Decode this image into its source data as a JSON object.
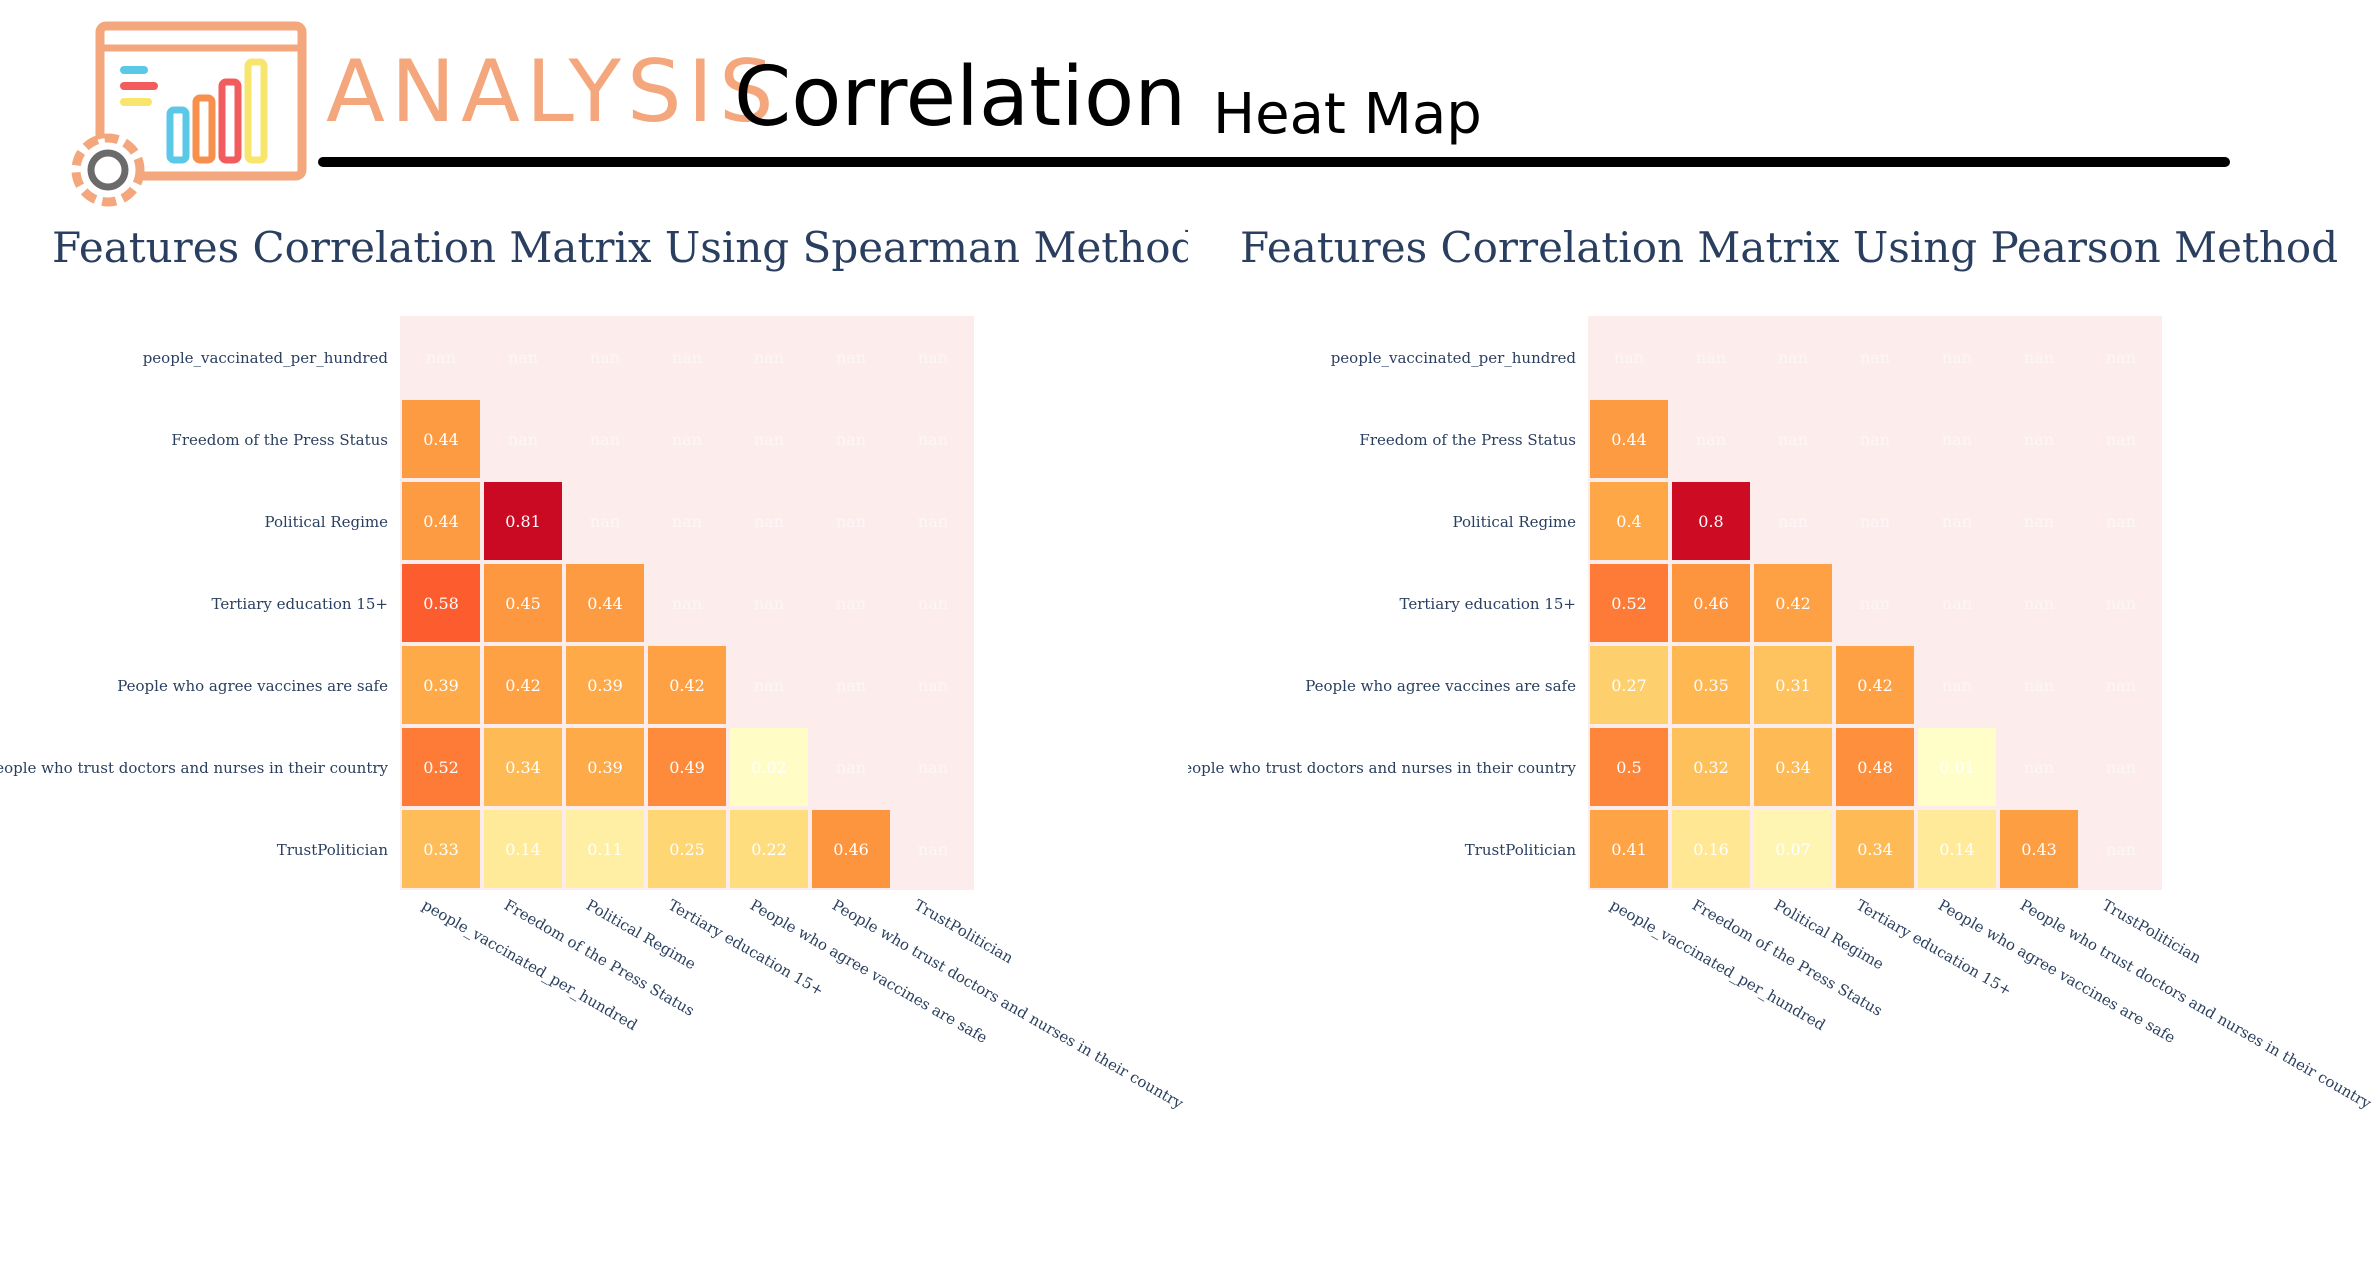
{
  "header": {
    "brand_word": "ANALYSIS",
    "title": "Correlation",
    "subtitle": "Heat Map",
    "logo_icon": "analytics-dashboard-gear-icon",
    "logo_colors": {
      "frame": "#f4a77c",
      "bar1": "#5bc8e8",
      "bar2": "#f7904d",
      "bar3": "#f25c5c",
      "bar4": "#f7e56e",
      "gear": "#f4a77c",
      "gear_inner": "#6b6b6b"
    }
  },
  "colors": {
    "nan_background": "#fcecec",
    "text_dark": "#2a3f5f",
    "scale": [
      "#ffffcc",
      "#ffeda0",
      "#fed976",
      "#feb24c",
      "#fd8d3c",
      "#fc4e2a",
      "#e31a1c",
      "#bd0026"
    ]
  },
  "chart_data": [
    {
      "type": "heatmap",
      "title": "Features Correlation Matrix Using Spearman Method",
      "labels": [
        "people_vaccinated_per_hundred",
        "Freedom of the Press Status",
        "Political Regime",
        "Tertiary education 15+",
        "People who agree vaccines are safe",
        "People who trust doctors and nurses in their country",
        "TrustPolitician"
      ],
      "values": [
        [
          null,
          null,
          null,
          null,
          null,
          null,
          null
        ],
        [
          0.44,
          null,
          null,
          null,
          null,
          null,
          null
        ],
        [
          0.44,
          0.81,
          null,
          null,
          null,
          null,
          null
        ],
        [
          0.58,
          0.45,
          0.44,
          null,
          null,
          null,
          null
        ],
        [
          0.39,
          0.42,
          0.39,
          0.42,
          null,
          null,
          null
        ],
        [
          0.52,
          0.34,
          0.39,
          0.49,
          0.02,
          null,
          null
        ],
        [
          0.33,
          0.14,
          0.11,
          0.25,
          0.22,
          0.46,
          null
        ]
      ],
      "cell_text": [
        [
          "nan",
          "nan",
          "nan",
          "nan",
          "nan",
          "nan",
          "nan"
        ],
        [
          "0.44",
          "nan",
          "nan",
          "nan",
          "nan",
          "nan",
          "nan"
        ],
        [
          "0.44",
          "0.81",
          "nan",
          "nan",
          "nan",
          "nan",
          "nan"
        ],
        [
          "0.58",
          "0.45",
          "0.44",
          "nan",
          "nan",
          "nan",
          "nan"
        ],
        [
          "0.39",
          "0.42",
          "0.39",
          "0.42",
          "nan",
          "nan",
          "nan"
        ],
        [
          "0.52",
          "0.34",
          "0.39",
          "0.49",
          "0.02",
          "nan",
          "nan"
        ],
        [
          "0.33",
          "0.14",
          "0.11",
          "0.25",
          "0.22",
          "0.46",
          "nan"
        ]
      ]
    },
    {
      "type": "heatmap",
      "title": "Features Correlation Matrix Using Pearson Method",
      "labels": [
        "people_vaccinated_per_hundred",
        "Freedom of the Press Status",
        "Political Regime",
        "Tertiary education 15+",
        "People who agree vaccines are safe",
        "People who trust doctors and nurses in their country",
        "TrustPolitician"
      ],
      "values": [
        [
          null,
          null,
          null,
          null,
          null,
          null,
          null
        ],
        [
          0.44,
          null,
          null,
          null,
          null,
          null,
          null
        ],
        [
          0.4,
          0.8,
          null,
          null,
          null,
          null,
          null
        ],
        [
          0.52,
          0.46,
          0.42,
          null,
          null,
          null,
          null
        ],
        [
          0.27,
          0.35,
          0.31,
          0.42,
          null,
          null,
          null
        ],
        [
          0.5,
          0.32,
          0.34,
          0.48,
          0.01,
          null,
          null
        ],
        [
          0.41,
          0.16,
          0.07,
          0.34,
          0.14,
          0.43,
          null
        ]
      ],
      "cell_text": [
        [
          "nan",
          "nan",
          "nan",
          "nan",
          "nan",
          "nan",
          "nan"
        ],
        [
          "0.44",
          "nan",
          "nan",
          "nan",
          "nan",
          "nan",
          "nan"
        ],
        [
          "0.4",
          "0.8",
          "nan",
          "nan",
          "nan",
          "nan",
          "nan"
        ],
        [
          "0.52",
          "0.46",
          "0.42",
          "nan",
          "nan",
          "nan",
          "nan"
        ],
        [
          "0.27",
          "0.35",
          "0.31",
          "0.42",
          "nan",
          "nan",
          "nan"
        ],
        [
          "0.5",
          "0.32",
          "0.34",
          "0.48",
          "0.01",
          "nan",
          "nan"
        ],
        [
          "0.41",
          "0.16",
          "0.07",
          "0.34",
          "0.14",
          "0.43",
          "nan"
        ]
      ]
    }
  ]
}
